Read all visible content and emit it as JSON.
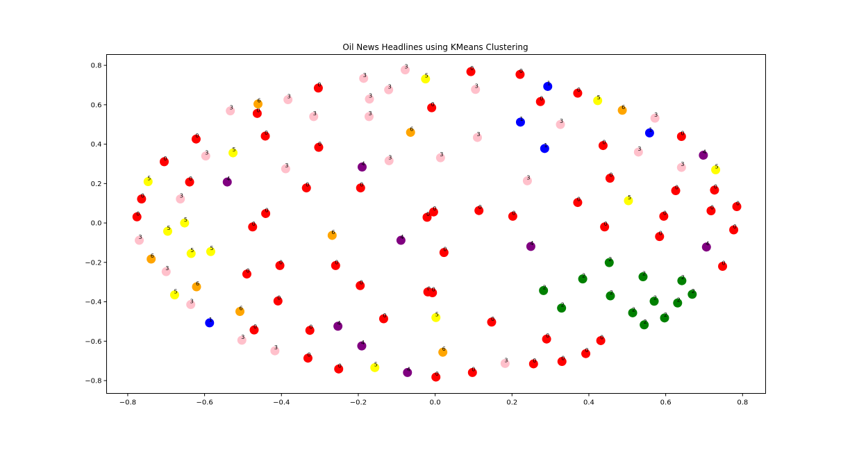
{
  "chart_data": {
    "type": "scatter",
    "title": "Oil News Headlines using KMeans Clustering",
    "xlabel": "",
    "ylabel": "",
    "xlim": [
      -0.855,
      0.86
    ],
    "ylim": [
      -0.865,
      0.855
    ],
    "xticks": [
      -0.8,
      -0.6,
      -0.4,
      -0.2,
      0.0,
      0.2,
      0.4,
      0.6,
      0.8
    ],
    "yticks": [
      -0.8,
      -0.6,
      -0.4,
      -0.2,
      0.0,
      0.2,
      0.4,
      0.6,
      0.8
    ],
    "xtick_labels": [
      "−0.8",
      "−0.6",
      "−0.4",
      "−0.2",
      "0.0",
      "0.2",
      "0.4",
      "0.6",
      "0.8"
    ],
    "ytick_labels": [
      "−0.8",
      "−0.6",
      "−0.4",
      "−0.2",
      "0.0",
      "0.2",
      "0.4",
      "0.6",
      "0.8"
    ],
    "grid": false,
    "legend": "none",
    "cluster_colors": {
      "0": "#ff0000",
      "1": "#0000ff",
      "2": "#008000",
      "3": "#ffc0cb",
      "4": "#800080",
      "5": "#ffff00",
      "6": "#ffa500"
    },
    "points": [
      {
        "x": 0.093,
        "y": 0.768,
        "c": 0
      },
      {
        "x": 0.221,
        "y": 0.754,
        "c": 0
      },
      {
        "x": 0.371,
        "y": 0.659,
        "c": 0
      },
      {
        "x": 0.274,
        "y": 0.616,
        "c": 0
      },
      {
        "x": -0.304,
        "y": 0.685,
        "c": 0
      },
      {
        "x": -0.463,
        "y": 0.556,
        "c": 0
      },
      {
        "x": -0.009,
        "y": 0.585,
        "c": 0
      },
      {
        "x": -0.442,
        "y": 0.441,
        "c": 0
      },
      {
        "x": -0.622,
        "y": 0.426,
        "c": 0
      },
      {
        "x": -0.303,
        "y": 0.384,
        "c": 0
      },
      {
        "x": -0.705,
        "y": 0.311,
        "c": 0
      },
      {
        "x": -0.639,
        "y": 0.208,
        "c": 0
      },
      {
        "x": -0.335,
        "y": 0.178,
        "c": 0
      },
      {
        "x": -0.194,
        "y": 0.178,
        "c": 0
      },
      {
        "x": -0.764,
        "y": 0.122,
        "c": 0
      },
      {
        "x": -0.776,
        "y": 0.031,
        "c": 0
      },
      {
        "x": -0.441,
        "y": 0.048,
        "c": 0
      },
      {
        "x": -0.475,
        "y": -0.02,
        "c": 0
      },
      {
        "x": -0.021,
        "y": 0.029,
        "c": 0
      },
      {
        "x": -0.004,
        "y": 0.056,
        "c": 0
      },
      {
        "x": 0.114,
        "y": 0.063,
        "c": 0
      },
      {
        "x": 0.202,
        "y": 0.034,
        "c": 0
      },
      {
        "x": 0.437,
        "y": 0.393,
        "c": 0
      },
      {
        "x": 0.455,
        "y": 0.227,
        "c": 0
      },
      {
        "x": 0.371,
        "y": 0.104,
        "c": 0
      },
      {
        "x": 0.441,
        "y": -0.02,
        "c": 0
      },
      {
        "x": 0.641,
        "y": 0.439,
        "c": 0
      },
      {
        "x": 0.626,
        "y": 0.164,
        "c": 0
      },
      {
        "x": 0.727,
        "y": 0.167,
        "c": 0
      },
      {
        "x": 0.595,
        "y": 0.034,
        "c": 0
      },
      {
        "x": 0.718,
        "y": 0.062,
        "c": 0
      },
      {
        "x": 0.785,
        "y": 0.083,
        "c": 0
      },
      {
        "x": 0.777,
        "y": -0.035,
        "c": 0
      },
      {
        "x": 0.584,
        "y": -0.069,
        "c": 0
      },
      {
        "x": 0.748,
        "y": -0.22,
        "c": 0
      },
      {
        "x": -0.404,
        "y": -0.216,
        "c": 0
      },
      {
        "x": -0.49,
        "y": -0.259,
        "c": 0
      },
      {
        "x": -0.259,
        "y": -0.216,
        "c": 0
      },
      {
        "x": 0.023,
        "y": -0.15,
        "c": 0
      },
      {
        "x": -0.195,
        "y": -0.318,
        "c": 0
      },
      {
        "x": -0.019,
        "y": -0.35,
        "c": 0
      },
      {
        "x": -0.007,
        "y": -0.354,
        "c": 0
      },
      {
        "x": -0.409,
        "y": -0.396,
        "c": 0
      },
      {
        "x": -0.471,
        "y": -0.543,
        "c": 0
      },
      {
        "x": -0.326,
        "y": -0.545,
        "c": 0
      },
      {
        "x": -0.134,
        "y": -0.486,
        "c": 0
      },
      {
        "x": 0.147,
        "y": -0.503,
        "c": 0
      },
      {
        "x": -0.331,
        "y": -0.686,
        "c": 0
      },
      {
        "x": -0.251,
        "y": -0.741,
        "c": 0
      },
      {
        "x": 0.002,
        "y": -0.782,
        "c": 0
      },
      {
        "x": 0.097,
        "y": -0.759,
        "c": 0
      },
      {
        "x": 0.256,
        "y": -0.715,
        "c": 0
      },
      {
        "x": 0.29,
        "y": -0.589,
        "c": 0
      },
      {
        "x": 0.33,
        "y": -0.703,
        "c": 0
      },
      {
        "x": 0.392,
        "y": -0.663,
        "c": 0
      },
      {
        "x": 0.431,
        "y": -0.597,
        "c": 0
      },
      {
        "x": 0.293,
        "y": 0.693,
        "c": 1
      },
      {
        "x": 0.222,
        "y": 0.512,
        "c": 1
      },
      {
        "x": 0.558,
        "y": 0.457,
        "c": 1
      },
      {
        "x": 0.285,
        "y": 0.378,
        "c": 1
      },
      {
        "x": -0.587,
        "y": -0.507,
        "c": 1
      },
      {
        "x": 0.453,
        "y": -0.201,
        "c": 2
      },
      {
        "x": 0.384,
        "y": -0.284,
        "c": 2
      },
      {
        "x": 0.282,
        "y": -0.343,
        "c": 2
      },
      {
        "x": 0.456,
        "y": -0.37,
        "c": 2
      },
      {
        "x": 0.329,
        "y": -0.432,
        "c": 2
      },
      {
        "x": 0.541,
        "y": -0.273,
        "c": 2
      },
      {
        "x": 0.642,
        "y": -0.293,
        "c": 2
      },
      {
        "x": 0.57,
        "y": -0.397,
        "c": 2
      },
      {
        "x": 0.631,
        "y": -0.406,
        "c": 2
      },
      {
        "x": 0.669,
        "y": -0.362,
        "c": 2
      },
      {
        "x": 0.514,
        "y": -0.456,
        "c": 2
      },
      {
        "x": 0.544,
        "y": -0.517,
        "c": 2
      },
      {
        "x": 0.597,
        "y": -0.482,
        "c": 2
      },
      {
        "x": -0.186,
        "y": 0.734,
        "c": 3
      },
      {
        "x": -0.078,
        "y": 0.777,
        "c": 3
      },
      {
        "x": -0.171,
        "y": 0.629,
        "c": 3
      },
      {
        "x": -0.121,
        "y": 0.676,
        "c": 3
      },
      {
        "x": -0.172,
        "y": 0.54,
        "c": 3
      },
      {
        "x": -0.383,
        "y": 0.626,
        "c": 3
      },
      {
        "x": -0.533,
        "y": 0.569,
        "c": 3
      },
      {
        "x": -0.316,
        "y": 0.54,
        "c": 3
      },
      {
        "x": -0.597,
        "y": 0.34,
        "c": 3
      },
      {
        "x": -0.389,
        "y": 0.275,
        "c": 3
      },
      {
        "x": -0.12,
        "y": 0.316,
        "c": 3
      },
      {
        "x": -0.663,
        "y": 0.122,
        "c": 3
      },
      {
        "x": -0.77,
        "y": -0.088,
        "c": 3
      },
      {
        "x": -0.7,
        "y": -0.247,
        "c": 3
      },
      {
        "x": -0.636,
        "y": -0.414,
        "c": 3
      },
      {
        "x": -0.503,
        "y": -0.595,
        "c": 3
      },
      {
        "x": -0.417,
        "y": -0.649,
        "c": 3
      },
      {
        "x": 0.105,
        "y": 0.678,
        "c": 3
      },
      {
        "x": 0.11,
        "y": 0.434,
        "c": 3
      },
      {
        "x": 0.014,
        "y": 0.331,
        "c": 3
      },
      {
        "x": 0.24,
        "y": 0.214,
        "c": 3
      },
      {
        "x": 0.326,
        "y": 0.5,
        "c": 3
      },
      {
        "x": 0.572,
        "y": 0.532,
        "c": 3
      },
      {
        "x": 0.529,
        "y": 0.36,
        "c": 3
      },
      {
        "x": 0.641,
        "y": 0.282,
        "c": 3
      },
      {
        "x": 0.182,
        "y": -0.713,
        "c": 3
      },
      {
        "x": -0.19,
        "y": 0.284,
        "c": 4
      },
      {
        "x": -0.541,
        "y": 0.208,
        "c": 4
      },
      {
        "x": 0.698,
        "y": 0.344,
        "c": 4
      },
      {
        "x": -0.089,
        "y": -0.088,
        "c": 4
      },
      {
        "x": 0.249,
        "y": -0.119,
        "c": 4
      },
      {
        "x": 0.706,
        "y": -0.122,
        "c": 4
      },
      {
        "x": -0.253,
        "y": -0.524,
        "c": 4
      },
      {
        "x": -0.191,
        "y": -0.624,
        "c": 4
      },
      {
        "x": -0.072,
        "y": -0.759,
        "c": 4
      },
      {
        "x": -0.025,
        "y": 0.731,
        "c": 5
      },
      {
        "x": 0.423,
        "y": 0.621,
        "c": 5
      },
      {
        "x": -0.526,
        "y": 0.356,
        "c": 5
      },
      {
        "x": -0.747,
        "y": 0.21,
        "c": 5
      },
      {
        "x": 0.73,
        "y": 0.27,
        "c": 5
      },
      {
        "x": 0.503,
        "y": 0.113,
        "c": 5
      },
      {
        "x": -0.652,
        "y": 0.0,
        "c": 5
      },
      {
        "x": -0.696,
        "y": -0.042,
        "c": 5
      },
      {
        "x": -0.635,
        "y": -0.155,
        "c": 5
      },
      {
        "x": -0.584,
        "y": -0.145,
        "c": 5
      },
      {
        "x": -0.678,
        "y": -0.365,
        "c": 5
      },
      {
        "x": 0.002,
        "y": -0.48,
        "c": 5
      },
      {
        "x": -0.157,
        "y": -0.734,
        "c": 5
      },
      {
        "x": -0.461,
        "y": 0.604,
        "c": 6
      },
      {
        "x": -0.064,
        "y": 0.46,
        "c": 6
      },
      {
        "x": 0.487,
        "y": 0.572,
        "c": 6
      },
      {
        "x": -0.268,
        "y": -0.063,
        "c": 6
      },
      {
        "x": -0.739,
        "y": -0.183,
        "c": 6
      },
      {
        "x": -0.621,
        "y": -0.324,
        "c": 6
      },
      {
        "x": -0.508,
        "y": -0.449,
        "c": 6
      },
      {
        "x": 0.02,
        "y": -0.656,
        "c": 6
      }
    ]
  }
}
